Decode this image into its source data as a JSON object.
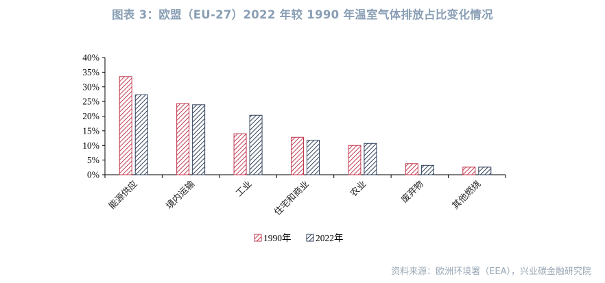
{
  "title": "图表 3：欧盟（EU-27）2022 年较 1990 年温室气体排放占比变化情况",
  "source": "资料来源：欧洲环境署（EEA），兴业碳金融研究院",
  "colors": {
    "series_1990": "#c0394f",
    "series_2022": "#2e3e58",
    "title": "#8a9fb5"
  },
  "chart_data": {
    "type": "bar",
    "categories": [
      "能源供应",
      "境内运输",
      "工业",
      "住宅和商业",
      "农业",
      "废弃物",
      "其他燃烧"
    ],
    "series": [
      {
        "name": "1990年",
        "values": [
          33.5,
          24.3,
          14.0,
          12.8,
          10.0,
          3.8,
          2.6
        ],
        "pattern": "diagonal-red"
      },
      {
        "name": "2022年",
        "values": [
          27.3,
          23.9,
          20.3,
          11.8,
          10.7,
          3.2,
          2.6
        ],
        "pattern": "diagonal-navy"
      }
    ],
    "yticks": [
      "0%",
      "5%",
      "10%",
      "15%",
      "20%",
      "25%",
      "30%",
      "35%",
      "40%"
    ],
    "ylim": [
      0,
      40
    ],
    "grid": false,
    "legend": "bottom-center"
  }
}
